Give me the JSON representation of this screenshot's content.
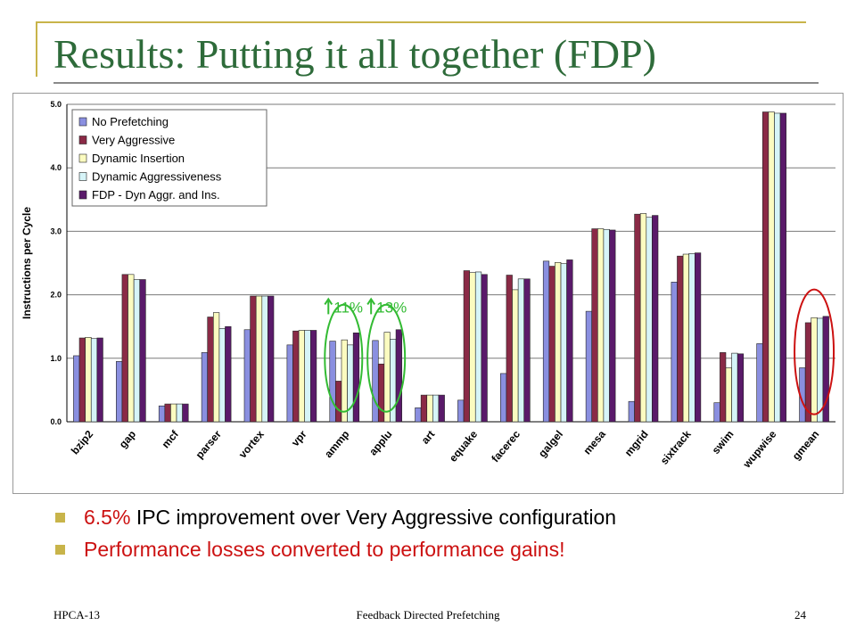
{
  "slide": {
    "title": "Results: Putting it all together (FDP)",
    "bullets": [
      {
        "highlight": "6.5%",
        "text": " IPC improvement over Very Aggressive configuration"
      },
      {
        "text": "Performance losses converted to performance gains!"
      }
    ],
    "footer": {
      "left": "HPCA-13",
      "center": "Feedback Directed Prefetching",
      "right": "24"
    }
  },
  "colors": {
    "title": "#2e6b3a",
    "bullet_square": "#c8b44a",
    "emphasis_red": "#cc1111",
    "annotation_green": "#33bb33"
  },
  "chart_data": {
    "type": "bar",
    "ylabel": "Instructions per Cycle",
    "xlabel": "",
    "ylim": [
      0,
      5
    ],
    "yticks": [
      "0.0",
      "1.0",
      "2.0",
      "3.0",
      "4.0",
      "5.0"
    ],
    "grid": true,
    "legend_position": "top-left",
    "categories": [
      "bzip2",
      "gap",
      "mcf",
      "parser",
      "vortex",
      "vpr",
      "ammp",
      "applu",
      "art",
      "equake",
      "facerec",
      "galgel",
      "mesa",
      "mgrid",
      "sixtrack",
      "swim",
      "wupwise",
      "gmean"
    ],
    "series": [
      {
        "name": "No Prefetching",
        "color": "#8a8fe0",
        "values": [
          1.04,
          0.95,
          0.25,
          1.09,
          1.45,
          1.21,
          1.27,
          1.28,
          0.22,
          0.34,
          0.76,
          2.53,
          1.74,
          0.32,
          2.2,
          0.3,
          1.23,
          0.85
        ]
      },
      {
        "name": "Very Aggressive",
        "color": "#8a2a46",
        "values": [
          1.32,
          2.32,
          0.28,
          1.65,
          1.98,
          1.43,
          0.64,
          0.91,
          0.42,
          2.38,
          2.31,
          2.45,
          3.04,
          3.27,
          2.61,
          1.09,
          4.88,
          1.56
        ]
      },
      {
        "name": "Dynamic Insertion",
        "color": "#fbfbc0",
        "values": [
          1.33,
          2.32,
          0.28,
          1.72,
          1.98,
          1.44,
          1.29,
          1.41,
          0.42,
          2.35,
          2.08,
          2.51,
          3.04,
          3.28,
          2.64,
          0.85,
          4.88,
          1.64
        ]
      },
      {
        "name": "Dynamic Aggressiveness",
        "color": "#d6f4f8",
        "values": [
          1.31,
          2.24,
          0.28,
          1.47,
          1.98,
          1.44,
          1.21,
          1.3,
          0.42,
          2.36,
          2.25,
          2.49,
          3.03,
          3.22,
          2.65,
          1.08,
          4.86,
          1.63
        ]
      },
      {
        "name": "FDP - Dyn Aggr. and Ins.",
        "color": "#5a1a6a",
        "values": [
          1.32,
          2.24,
          0.28,
          1.5,
          1.98,
          1.44,
          1.4,
          1.45,
          0.42,
          2.32,
          2.25,
          2.55,
          3.02,
          3.25,
          2.66,
          1.07,
          4.86,
          1.66
        ]
      }
    ],
    "annotations": [
      {
        "text": "11%",
        "category": "ammp"
      },
      {
        "text": "13%",
        "category": "applu"
      }
    ]
  }
}
